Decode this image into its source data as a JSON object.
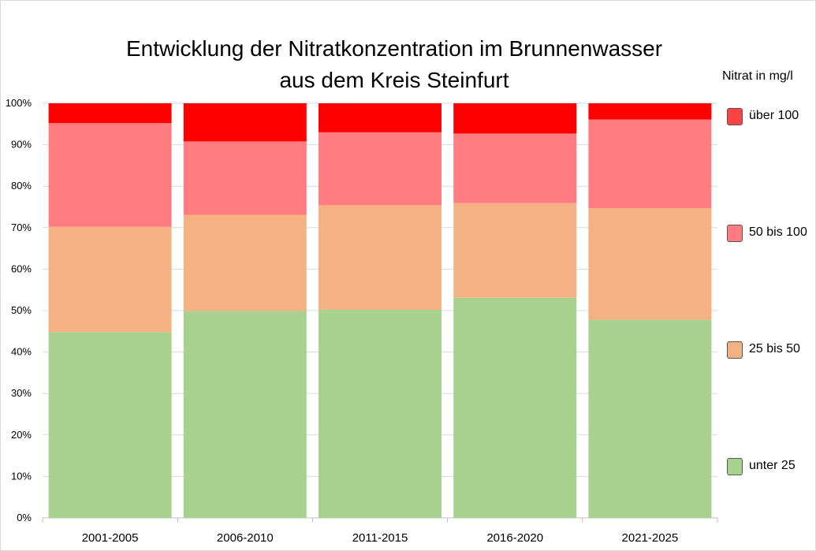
{
  "chart_data": {
    "type": "bar",
    "stacked": true,
    "percent": true,
    "title": "Entwicklung der Nitratkonzentration im Brunnenwasser\naus dem Kreis Steinfurt",
    "legend_title": "Nitrat in mg/l",
    "categories": [
      "2001-2005",
      "2006-2010",
      "2011-2015",
      "2016-2020",
      "2021-2025"
    ],
    "series": [
      {
        "name": "unter 25",
        "color": "#a9d18e",
        "values": [
          44.8,
          49.9,
          50.2,
          53.1,
          47.8
        ]
      },
      {
        "name": "25 bis 50",
        "color": "#f4b183",
        "values": [
          25.4,
          23.2,
          25.2,
          22.8,
          26.9
        ]
      },
      {
        "name": "50 bis 100",
        "color": "#ff7c80",
        "values": [
          25.0,
          17.7,
          17.6,
          16.8,
          21.4
        ]
      },
      {
        "name": "über 100",
        "color": "#ff0000",
        "values": [
          4.8,
          9.2,
          7.0,
          7.3,
          3.9
        ]
      }
    ],
    "legend_order": [
      "über 100",
      "50 bis 100",
      "25 bis 50",
      "unter 25"
    ],
    "legend_colors": {
      "über 100": "#ff4343",
      "50 bis 100": "#ff7c80",
      "25 bis 50": "#f4b183",
      "unter 25": "#a9d18e"
    },
    "ylim": [
      0,
      100
    ],
    "yticks": [
      "0%",
      "10%",
      "20%",
      "30%",
      "40%",
      "50%",
      "60%",
      "70%",
      "80%",
      "90%",
      "100%"
    ],
    "xlabel": "",
    "ylabel": ""
  }
}
